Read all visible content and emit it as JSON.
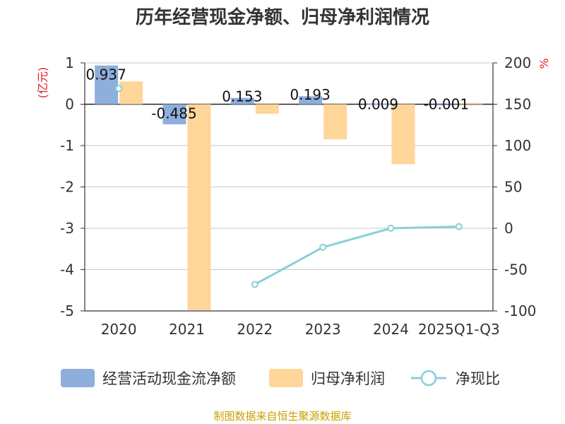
{
  "chart_data": {
    "type": "bar",
    "title": "历年经营现金净额、归母净利润情况",
    "categories": [
      "2020",
      "2021",
      "2022",
      "2023",
      "2024",
      "2025Q1-Q3"
    ],
    "series": [
      {
        "name": "经营活动现金流净额",
        "kind": "bar",
        "axis": "left",
        "color": "#8eaedb",
        "values": [
          0.937,
          -0.485,
          0.153,
          0.193,
          0.009,
          -0.001
        ],
        "labels": [
          "0.937",
          "-0.485",
          "0.153",
          "0.193",
          "0.009",
          "-0.001"
        ]
      },
      {
        "name": "归母净利润",
        "kind": "bar",
        "axis": "left",
        "color": "#ffd699",
        "values": [
          0.55,
          -4.98,
          -0.23,
          -0.85,
          -1.45,
          0.03
        ]
      },
      {
        "name": "净现比",
        "kind": "line",
        "axis": "right",
        "color": "#88d0d8",
        "values": [
          169,
          null,
          -68,
          -23,
          0,
          2
        ]
      }
    ],
    "y_left": {
      "unit": "(亿元)",
      "ylim": [
        -5,
        1
      ],
      "ticks": [
        "1",
        "0",
        "-1",
        "-2",
        "-3",
        "-4",
        "-5"
      ]
    },
    "y_right": {
      "unit": "%",
      "ylim": [
        -100,
        200
      ],
      "ticks": [
        "200",
        "150",
        "100",
        "50",
        "0",
        "-50",
        "-100"
      ]
    },
    "grid": true,
    "legend_position": "bottom"
  },
  "source": "制图数据来自恒生聚源数据库"
}
